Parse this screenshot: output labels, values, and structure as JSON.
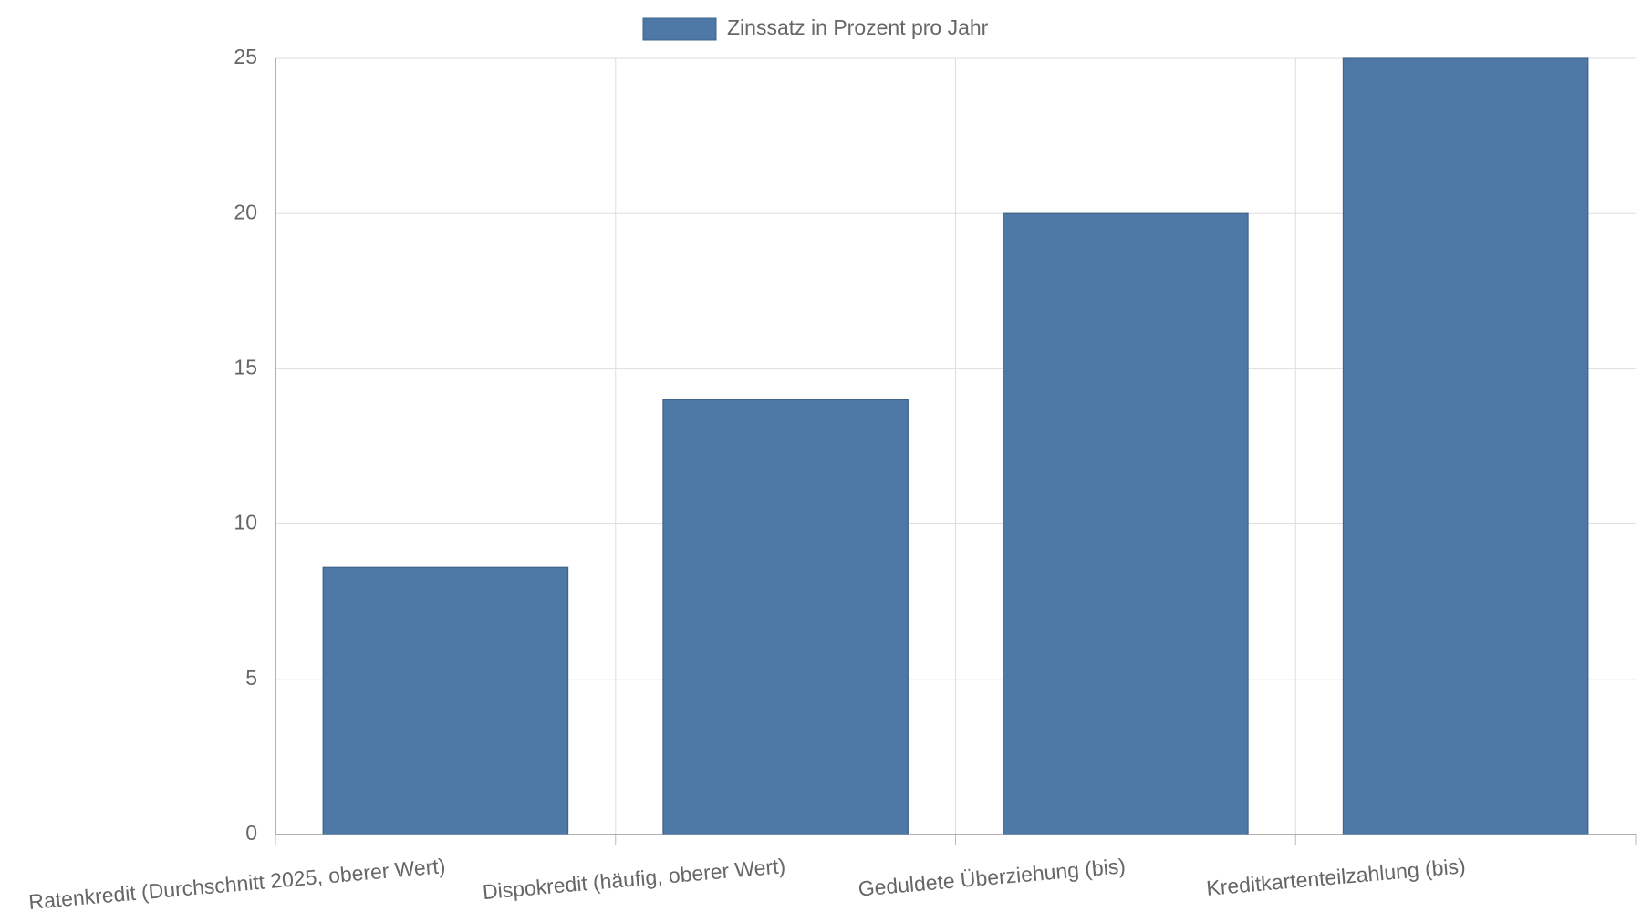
{
  "chart_data": {
    "type": "bar",
    "categories": [
      "Ratenkredit (Durchschnitt 2025, oberer Wert)",
      "Dispokredit (häufig, oberer Wert)",
      "Geduldete Überziehung (bis)",
      "Kreditkartenteilzahlung (bis)"
    ],
    "series": [
      {
        "name": "Zinssatz in Prozent pro Jahr",
        "color": "#4e79a7",
        "values": [
          8.6,
          14,
          20,
          25
        ]
      }
    ],
    "ylim": [
      0,
      25
    ],
    "yticks": [
      0,
      5,
      10,
      15,
      20,
      25
    ],
    "grid": true
  }
}
